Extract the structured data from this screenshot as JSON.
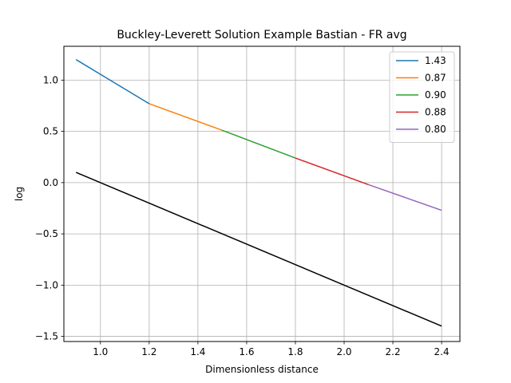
{
  "chart_data": {
    "type": "line",
    "title": "Buckley-Leverett Solution Example Bastian - FR avg",
    "xlabel": "Dimensionless distance",
    "ylabel": "log",
    "xlim": [
      0.85,
      2.475
    ],
    "ylim": [
      -1.55,
      1.33
    ],
    "xticks": [
      1.0,
      1.2,
      1.4,
      1.6,
      1.8,
      2.0,
      2.2,
      2.4
    ],
    "yticks": [
      -1.5,
      -1.0,
      -0.5,
      0.0,
      0.5,
      1.0
    ],
    "grid": true,
    "legend_position": "top-right",
    "series": [
      {
        "name": "1.43",
        "color": "#1f77b4",
        "x": [
          0.9,
          1.2
        ],
        "y": [
          1.2,
          0.77
        ]
      },
      {
        "name": "0.87",
        "color": "#ff7f0e",
        "x": [
          1.2,
          1.5
        ],
        "y": [
          0.77,
          0.51
        ]
      },
      {
        "name": "0.90",
        "color": "#2ca02c",
        "x": [
          1.5,
          1.8
        ],
        "y": [
          0.51,
          0.24
        ]
      },
      {
        "name": "0.88",
        "color": "#d62728",
        "x": [
          1.8,
          2.1
        ],
        "y": [
          0.24,
          -0.02
        ]
      },
      {
        "name": "0.80",
        "color": "#9467bd",
        "x": [
          2.1,
          2.4
        ],
        "y": [
          -0.02,
          -0.27
        ]
      }
    ],
    "reference_line": {
      "color": "#000000",
      "x": [
        0.9,
        2.4
      ],
      "y": [
        0.1,
        -1.4
      ]
    }
  }
}
